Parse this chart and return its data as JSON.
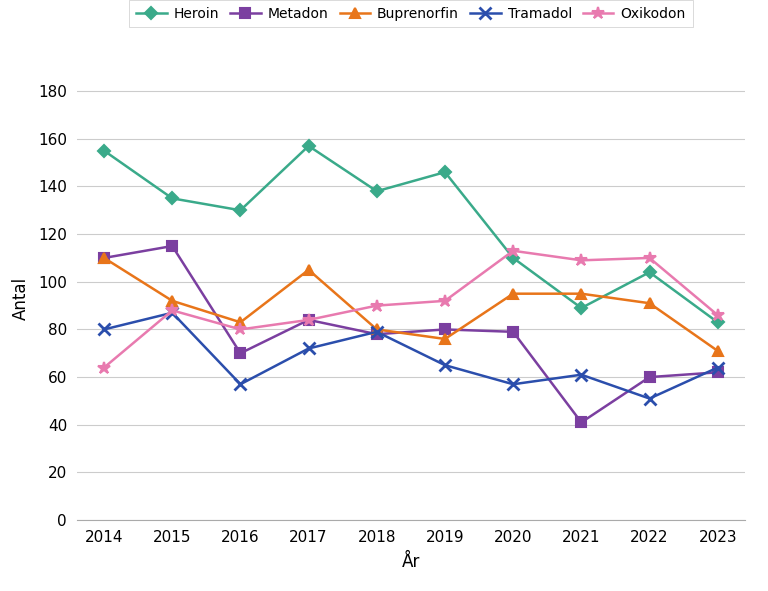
{
  "years": [
    2014,
    2015,
    2016,
    2017,
    2018,
    2019,
    2020,
    2021,
    2022,
    2023
  ],
  "series": {
    "Heroin": [
      155,
      135,
      130,
      157,
      138,
      146,
      110,
      89,
      104,
      83
    ],
    "Metadon": [
      110,
      115,
      70,
      84,
      78,
      80,
      79,
      41,
      60,
      62
    ],
    "Buprenorfin": [
      110,
      92,
      83,
      105,
      80,
      76,
      95,
      95,
      91,
      71
    ],
    "Tramadol": [
      80,
      87,
      57,
      72,
      79,
      65,
      57,
      61,
      51,
      64
    ],
    "Oxikodon": [
      64,
      88,
      80,
      84,
      90,
      92,
      113,
      109,
      110,
      86
    ]
  },
  "colors": {
    "Heroin": "#3AAA8A",
    "Metadon": "#7B3FA0",
    "Buprenorfin": "#E8751A",
    "Tramadol": "#2B4EAC",
    "Oxikodon": "#E87AAF"
  },
  "markers": {
    "Heroin": "D",
    "Metadon": "s",
    "Buprenorfin": "^",
    "Tramadol": "x",
    "Oxikodon": "*"
  },
  "ylabel": "Antal",
  "xlabel": "År",
  "ylim": [
    0,
    186
  ],
  "yticks": [
    0,
    20,
    40,
    60,
    80,
    100,
    120,
    140,
    160,
    180
  ],
  "axis_fontsize": 11,
  "legend_fontsize": 10,
  "background_color": "#FFFFFF",
  "grid_color": "#CCCCCC"
}
